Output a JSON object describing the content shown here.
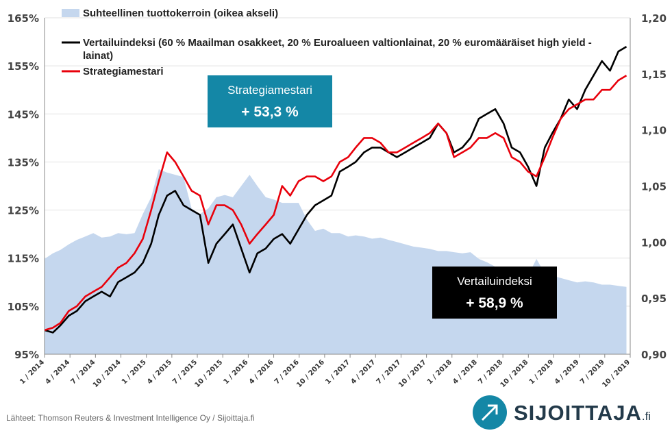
{
  "chart_data": {
    "type": "line",
    "title": "",
    "legend_placement": "top-left",
    "x_ticks": [
      "1 / 2014",
      "4 / 2014",
      "7 / 2014",
      "10 / 2014",
      "1 / 2015",
      "4 / 2015",
      "7 / 2015",
      "10 / 2015",
      "1 / 2016",
      "4 / 2016",
      "7 / 2016",
      "10 / 2016",
      "1 / 2017",
      "4 / 2017",
      "7 / 2017",
      "10 / 2017",
      "1 / 2018",
      "4 / 2018",
      "7 / 2018",
      "10 / 2018",
      "1 / 2019",
      "4 / 2019",
      "7 / 2019",
      "10 / 2019"
    ],
    "y_left": {
      "ticks": [
        "95%",
        "105%",
        "115%",
        "125%",
        "135%",
        "145%",
        "155%",
        "165%"
      ],
      "range": [
        95,
        165
      ]
    },
    "y_right": {
      "ticks": [
        "0,90",
        "0,95",
        "1,00",
        "1,05",
        "1,10",
        "1,15",
        "1,20"
      ],
      "range": [
        0.9,
        1.2
      ]
    },
    "series": [
      {
        "name": "Suhteellinen tuottokerroin (oikea akseli)",
        "type": "area",
        "axis": "right",
        "color": "#c5d7ee",
        "x": [
          "2014-01",
          "2014-02",
          "2014-03",
          "2014-04",
          "2014-05",
          "2014-06",
          "2014-07",
          "2014-08",
          "2014-09",
          "2014-10",
          "2014-11",
          "2014-12",
          "2015-01",
          "2015-02",
          "2015-03",
          "2015-04",
          "2015-05",
          "2015-06",
          "2015-07",
          "2015-08",
          "2015-09",
          "2015-10",
          "2015-11",
          "2015-12",
          "2016-01",
          "2016-02",
          "2016-03",
          "2016-04",
          "2016-05",
          "2016-06",
          "2016-07",
          "2016-08",
          "2016-09",
          "2016-10",
          "2016-11",
          "2016-12",
          "2017-01",
          "2017-02",
          "2017-03",
          "2017-04",
          "2017-05",
          "2017-06",
          "2017-07",
          "2017-08",
          "2017-09",
          "2017-10",
          "2017-11",
          "2017-12",
          "2018-01",
          "2018-02",
          "2018-03",
          "2018-04",
          "2018-05",
          "2018-06",
          "2018-07",
          "2018-08",
          "2018-09",
          "2018-10",
          "2018-11",
          "2018-12",
          "2019-01",
          "2019-02",
          "2019-03",
          "2019-04",
          "2019-05",
          "2019-06",
          "2019-07",
          "2019-08",
          "2019-09",
          "2019-10",
          "2019-11",
          "2019-12"
        ],
        "values": [
          0.985,
          0.99,
          0.993,
          0.998,
          1.002,
          1.005,
          1.008,
          1.004,
          1.005,
          1.008,
          1.007,
          1.008,
          1.025,
          1.04,
          1.065,
          1.062,
          1.06,
          1.058,
          1.03,
          1.025,
          1.03,
          1.04,
          1.042,
          1.04,
          1.05,
          1.06,
          1.05,
          1.04,
          1.038,
          1.035,
          1.035,
          1.035,
          1.02,
          1.01,
          1.012,
          1.008,
          1.008,
          1.005,
          1.006,
          1.005,
          1.003,
          1.004,
          1.002,
          1.0,
          0.998,
          0.996,
          0.995,
          0.994,
          0.992,
          0.992,
          0.991,
          0.99,
          0.991,
          0.985,
          0.982,
          0.978,
          0.976,
          0.974,
          0.972,
          0.97,
          0.985,
          0.972,
          0.97,
          0.968,
          0.966,
          0.964,
          0.965,
          0.964,
          0.962,
          0.962,
          0.961,
          0.96
        ]
      },
      {
        "name": "Vertailuindeksi (60 % Maailman osakkeet, 20 % Euroalueen valtionlainat, 20 % euromääräiset high yield -lainat)",
        "type": "line",
        "axis": "left",
        "color": "#000000",
        "x": [
          "2014-01",
          "2014-02",
          "2014-03",
          "2014-04",
          "2014-05",
          "2014-06",
          "2014-07",
          "2014-08",
          "2014-09",
          "2014-10",
          "2014-11",
          "2014-12",
          "2015-01",
          "2015-02",
          "2015-03",
          "2015-04",
          "2015-05",
          "2015-06",
          "2015-07",
          "2015-08",
          "2015-09",
          "2015-10",
          "2015-11",
          "2015-12",
          "2016-01",
          "2016-02",
          "2016-03",
          "2016-04",
          "2016-05",
          "2016-06",
          "2016-07",
          "2016-08",
          "2016-09",
          "2016-10",
          "2016-11",
          "2016-12",
          "2017-01",
          "2017-02",
          "2017-03",
          "2017-04",
          "2017-05",
          "2017-06",
          "2017-07",
          "2017-08",
          "2017-09",
          "2017-10",
          "2017-11",
          "2017-12",
          "2018-01",
          "2018-02",
          "2018-03",
          "2018-04",
          "2018-05",
          "2018-06",
          "2018-07",
          "2018-08",
          "2018-09",
          "2018-10",
          "2018-11",
          "2018-12",
          "2019-01",
          "2019-02",
          "2019-03",
          "2019-04",
          "2019-05",
          "2019-06",
          "2019-07",
          "2019-08",
          "2019-09",
          "2019-10",
          "2019-11",
          "2019-12"
        ],
        "values": [
          100,
          99.5,
          101,
          103,
          104,
          106,
          107,
          108,
          107,
          110,
          111,
          112,
          114,
          118,
          124,
          128,
          129,
          126,
          125,
          124,
          114,
          118,
          120,
          122,
          117,
          112,
          116,
          117,
          119,
          120,
          118,
          121,
          124,
          126,
          127,
          128,
          133,
          134,
          135,
          137,
          138,
          138,
          137,
          136,
          137,
          138,
          139,
          140,
          143,
          141,
          137,
          138,
          140,
          144,
          145,
          146,
          143,
          138,
          137,
          134,
          130,
          138,
          141,
          144,
          148,
          146,
          150,
          153,
          156,
          154,
          158,
          159
        ]
      },
      {
        "name": "Strategiamestari",
        "type": "line",
        "axis": "left",
        "color": "#e8000b",
        "x": [
          "2014-01",
          "2014-02",
          "2014-03",
          "2014-04",
          "2014-05",
          "2014-06",
          "2014-07",
          "2014-08",
          "2014-09",
          "2014-10",
          "2014-11",
          "2014-12",
          "2015-01",
          "2015-02",
          "2015-03",
          "2015-04",
          "2015-05",
          "2015-06",
          "2015-07",
          "2015-08",
          "2015-09",
          "2015-10",
          "2015-11",
          "2015-12",
          "2016-01",
          "2016-02",
          "2016-03",
          "2016-04",
          "2016-05",
          "2016-06",
          "2016-07",
          "2016-08",
          "2016-09",
          "2016-10",
          "2016-11",
          "2016-12",
          "2017-01",
          "2017-02",
          "2017-03",
          "2017-04",
          "2017-05",
          "2017-06",
          "2017-07",
          "2017-08",
          "2017-09",
          "2017-10",
          "2017-11",
          "2017-12",
          "2018-01",
          "2018-02",
          "2018-03",
          "2018-04",
          "2018-05",
          "2018-06",
          "2018-07",
          "2018-08",
          "2018-09",
          "2018-10",
          "2018-11",
          "2018-12",
          "2019-01",
          "2019-02",
          "2019-03",
          "2019-04",
          "2019-05",
          "2019-06",
          "2019-07",
          "2019-08",
          "2019-09",
          "2019-10",
          "2019-11",
          "2019-12"
        ],
        "values": [
          100,
          100.5,
          101.5,
          104,
          105,
          107,
          108,
          109,
          111,
          113,
          114,
          116,
          119,
          125,
          131,
          137,
          135,
          132,
          129,
          128,
          122,
          126,
          126,
          125,
          122,
          118,
          120,
          122,
          124,
          130,
          128,
          131,
          132,
          132,
          131,
          132,
          135,
          136,
          138,
          140,
          140,
          139,
          137,
          137,
          138,
          139,
          140,
          141,
          143,
          141,
          136,
          137,
          138,
          140,
          140,
          141,
          140,
          136,
          135,
          133,
          132,
          136,
          140,
          144,
          146,
          147,
          148,
          148,
          150,
          150,
          152,
          153
        ]
      }
    ],
    "annotations": [
      {
        "name": "Strategiamestari",
        "text": "+ 53,3 %",
        "color": "#1487a6"
      },
      {
        "name": "Vertailuindeksi",
        "text": "+ 58,9 %",
        "color": "#000000"
      }
    ]
  },
  "legend": [
    {
      "label": "Suhteellinen tuottokerroin (oikea akseli)",
      "color": "#c5d7ee"
    },
    {
      "label": "Vertailuindeksi (60 % Maailman osakkeet, 20 % Euroalueen valtionlainat, 20 % euromääräiset high yield -",
      "label2": "lainat)",
      "color": "#000000"
    },
    {
      "label": "Strategiamestari",
      "color": "#e8000b"
    }
  ],
  "boxes": {
    "strategy": {
      "title": "Strategiamestari",
      "value": "+ 53,3 %"
    },
    "benchmark": {
      "title": "Vertailuindeksi",
      "value": "+ 58,9 %"
    }
  },
  "source": "Lähteet: Thomson Reuters & Investment Intelligence Oy / Sijoittaja.fi",
  "logo": {
    "text": "SIJOITTAJA",
    "suffix": ".fi",
    "icon": "arrow-up-right-icon"
  }
}
